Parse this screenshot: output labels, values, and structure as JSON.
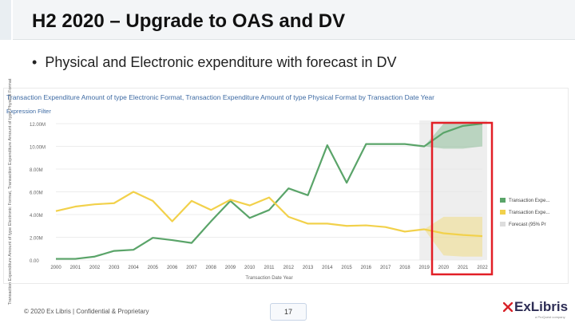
{
  "slide": {
    "title": "H2 2020 – Upgrade to OAS and DV",
    "bullet_dot": "•",
    "bullet": "Physical and Electronic expenditure with forecast in DV"
  },
  "chart_header": {
    "title": "Transaction Expenditure Amount of type Electronic Format, Transaction Expenditure Amount of type Physical Format by Transaction Date Year",
    "filter": "Expression Filter"
  },
  "chart_data": {
    "type": "line",
    "ylabel": "Transaction Expenditure Amount of type Electronic Format, Transaction Expenditure Amount of type Physical Format",
    "xlabel": "Transaction Date Year",
    "y_ticks": [
      "0.00",
      "2.00M",
      "4.00M",
      "6.00M",
      "8.00M",
      "10.00M",
      "12.00M"
    ],
    "ylim": [
      0,
      12
    ],
    "y_unit": "M",
    "x": [
      "2000",
      "2001",
      "2002",
      "2003",
      "2004",
      "2005",
      "2006",
      "2007",
      "2008",
      "2009",
      "2010",
      "2011",
      "2012",
      "2013",
      "2014",
      "2015",
      "2016",
      "2017",
      "2018",
      "2019",
      "2020",
      "2021",
      "2022"
    ],
    "grid": true,
    "legend_position": "right",
    "series": [
      {
        "name": "Transaction Expe...",
        "color": "#5aa469",
        "values": [
          0.1,
          0.1,
          0.3,
          0.8,
          0.9,
          1.95,
          1.75,
          1.5,
          3.4,
          5.2,
          3.7,
          4.4,
          6.3,
          5.7,
          10.1,
          6.8,
          10.2,
          10.2,
          10.2,
          10.0,
          11.2,
          11.8,
          12.0
        ]
      },
      {
        "name": "Transaction Expe...",
        "color": "#f2d14b",
        "values": [
          4.3,
          4.7,
          4.9,
          5.0,
          6.0,
          5.2,
          3.4,
          5.2,
          4.4,
          5.3,
          4.8,
          5.5,
          3.8,
          3.2,
          3.2,
          3.0,
          3.05,
          2.9,
          2.5,
          2.7,
          2.35,
          2.2,
          2.1
        ]
      }
    ],
    "forecast": {
      "legend": "Forecast (95% Pr",
      "start_year": "2019",
      "end_year": "2022",
      "bands": [
        {
          "color": "#5aa469",
          "lower": [
            10.0,
            9.8,
            9.8,
            10.0
          ],
          "upper": [
            10.0,
            12.0,
            12.0,
            12.0
          ]
        },
        {
          "color": "#f2d14b",
          "lower": [
            2.7,
            0.4,
            0.3,
            0.3
          ],
          "upper": [
            2.7,
            3.8,
            3.8,
            3.8
          ]
        }
      ]
    },
    "highlight_color": "#e21f26"
  },
  "footer": {
    "copyright": "© 2020 Ex Libris | Confidential & Proprietary",
    "page": "17"
  },
  "logo": {
    "text": "ExLibris",
    "sub": "a ProQuest company"
  }
}
